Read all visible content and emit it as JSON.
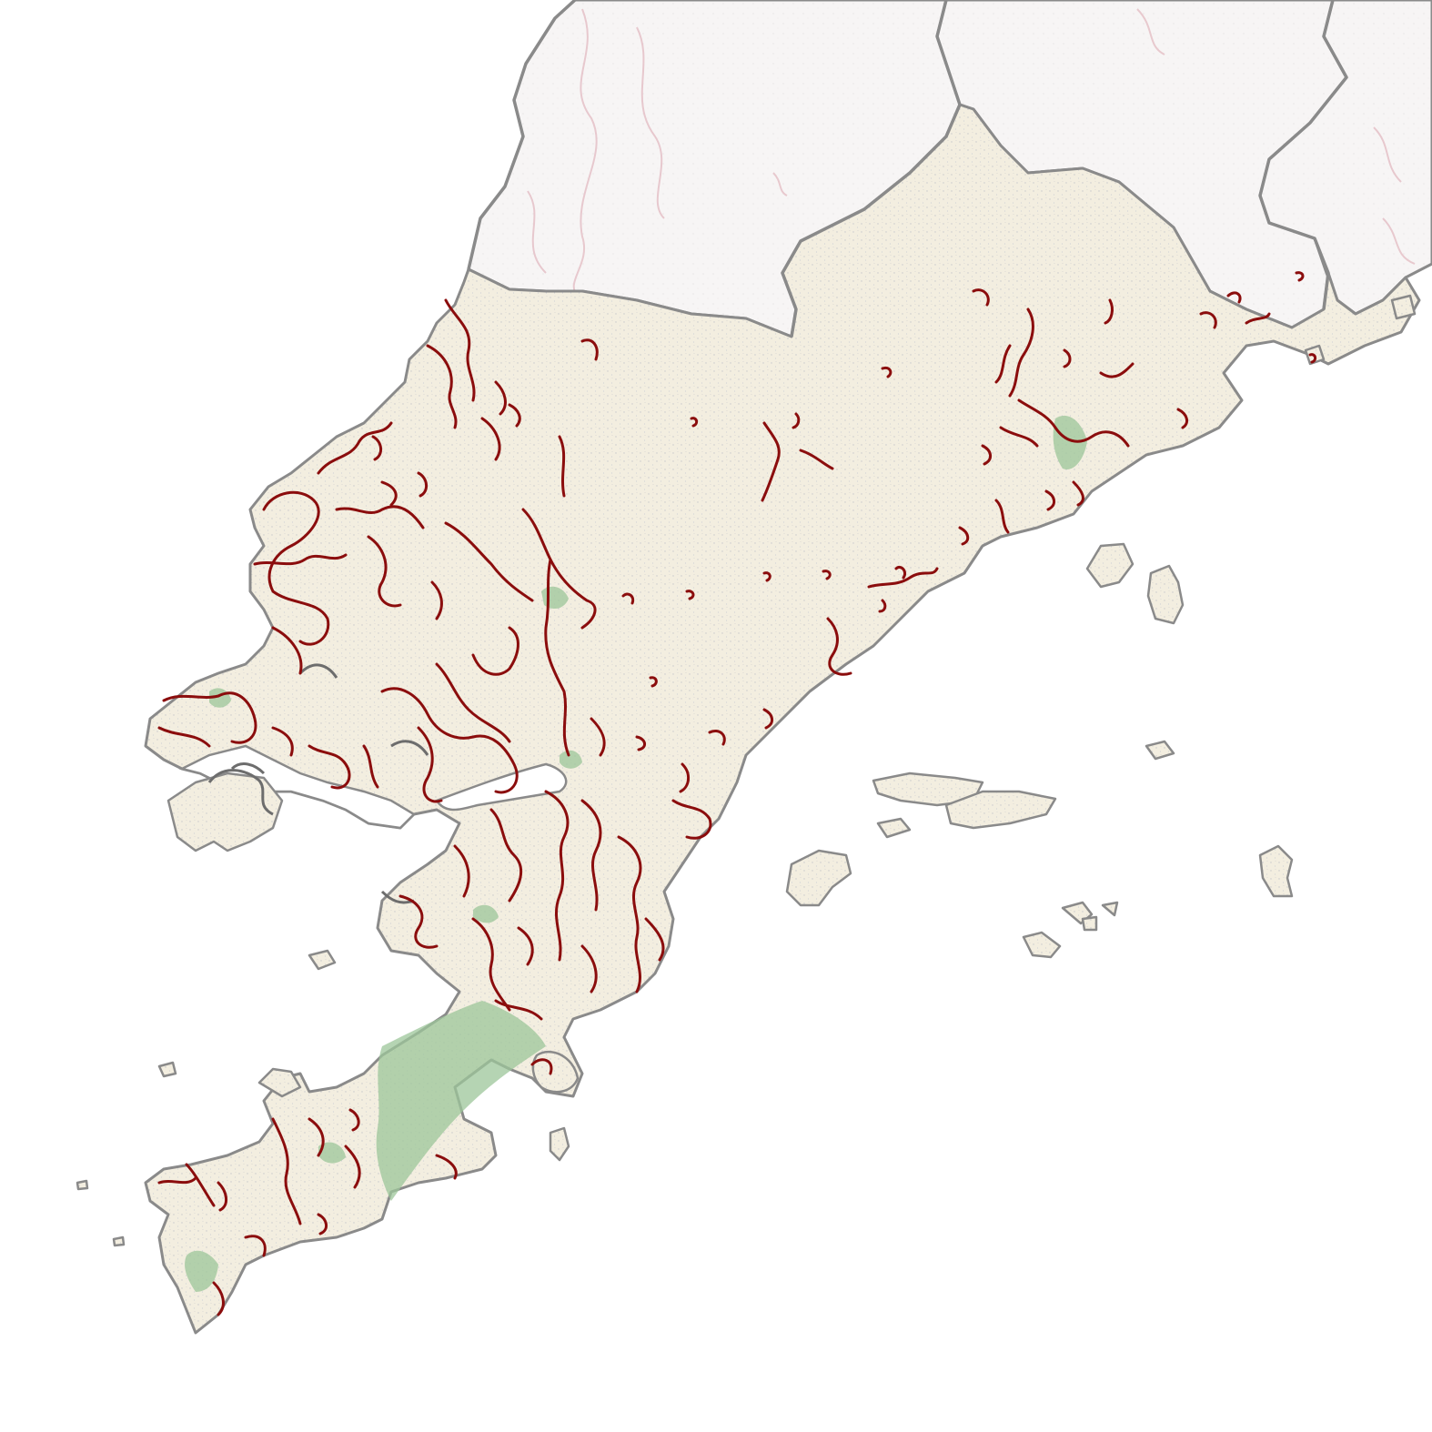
{
  "map": {
    "labels": [],
    "colors": {
      "sea": "#ffffff",
      "land_focus": "#f3eee0",
      "land_neighbor": "#f7f5f5",
      "border": "#8a8a8a",
      "highlight_outline": "#8b0d0d",
      "urban_green": "#9cc59a",
      "roads": "#c9c9cc",
      "neighbor_features": "#e6c4ca"
    },
    "layers": [
      "neighbor-regions",
      "focus-region",
      "islands",
      "urban-green-areas",
      "highlighted-zones"
    ]
  }
}
